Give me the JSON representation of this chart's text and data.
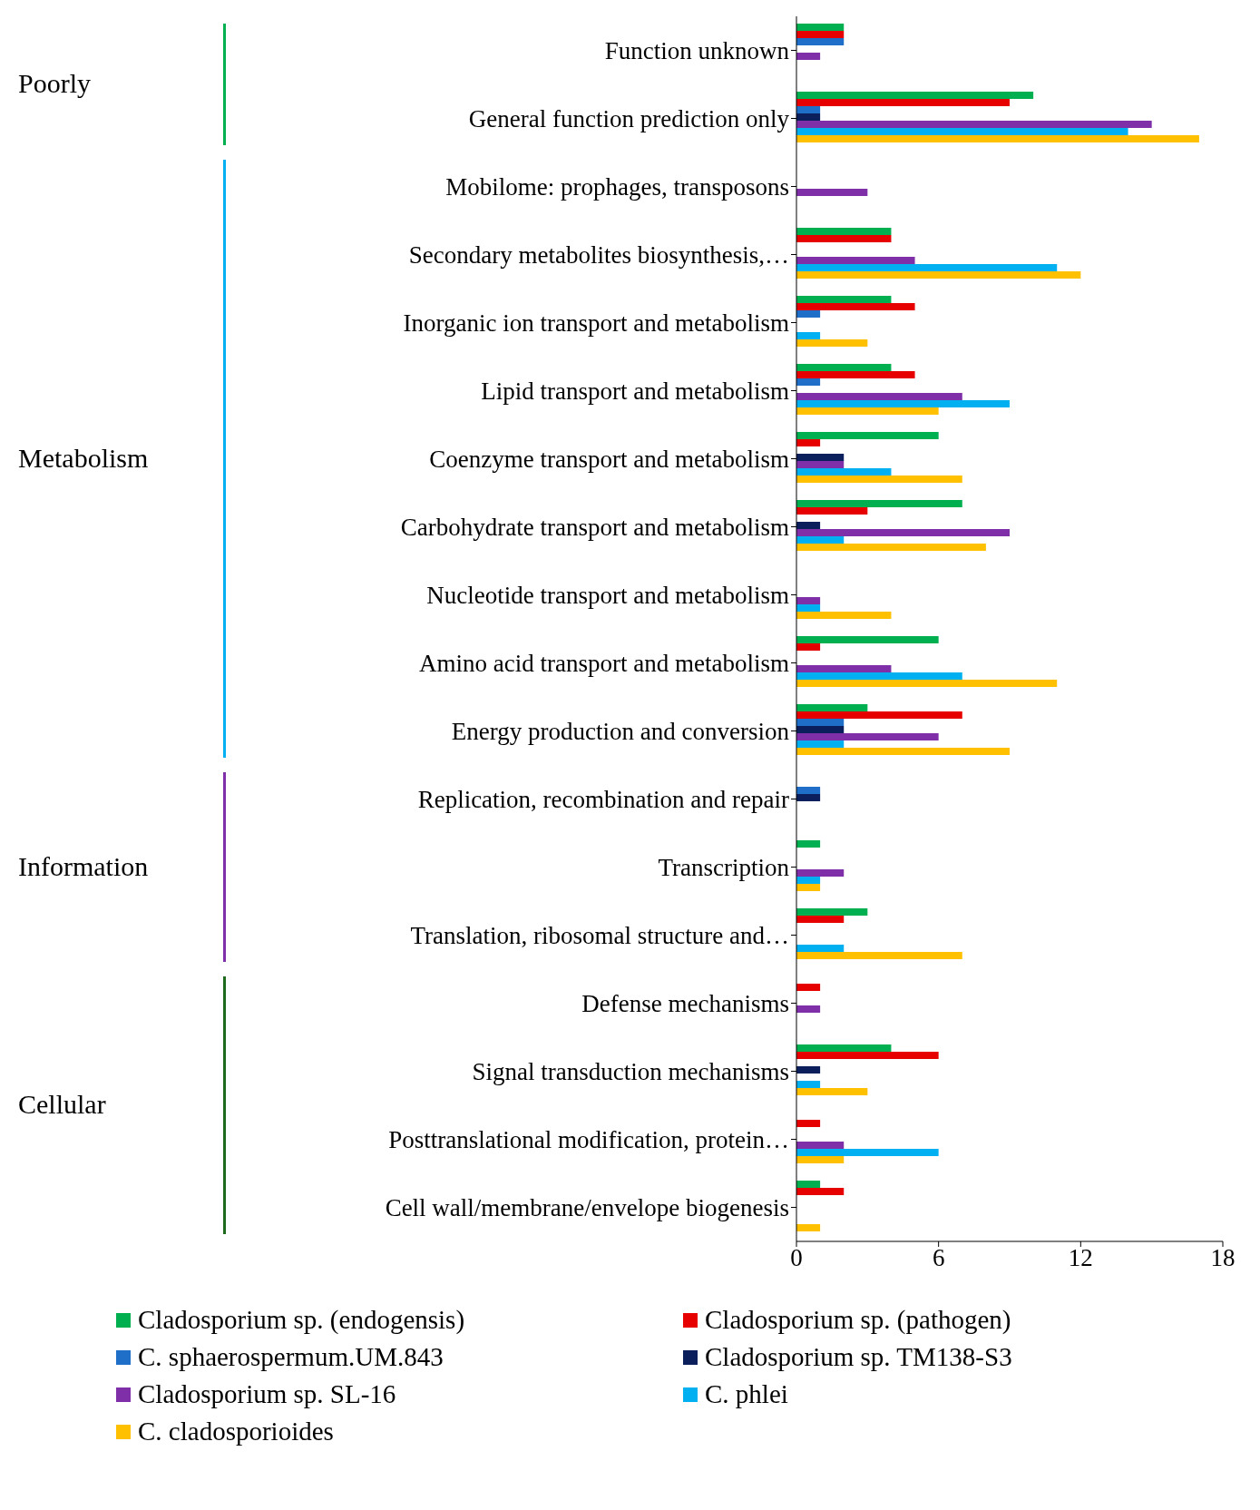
{
  "chart_data": {
    "type": "bar",
    "orientation": "horizontal",
    "categories": [
      "Function unknown",
      "General function prediction only",
      "Mobilome: prophages, transposons",
      "Secondary metabolites biosynthesis,…",
      "Inorganic ion transport and metabolism",
      "Lipid transport and metabolism",
      "Coenzyme transport and metabolism",
      "Carbohydrate transport and metabolism",
      "Nucleotide transport and metabolism",
      "Amino acid transport and metabolism",
      "Energy production and conversion",
      "Replication, recombination and repair",
      "Transcription",
      "Translation, ribosomal structure and…",
      "Defense mechanisms",
      "Signal transduction mechanisms",
      "Posttranslational modification, protein…",
      "Cell wall/membrane/envelope biogenesis"
    ],
    "series": [
      {
        "name": "Cladosporium sp. (endogensis)",
        "color": "#00b050",
        "values": [
          2,
          10,
          0,
          4,
          4,
          4,
          6,
          7,
          0,
          6,
          3,
          0,
          1,
          3,
          0,
          4,
          0,
          1
        ]
      },
      {
        "name": "Cladosporium sp. (pathogen)",
        "color": "#e60000",
        "values": [
          2,
          9,
          0,
          4,
          5,
          5,
          1,
          3,
          0,
          1,
          7,
          0,
          0,
          2,
          1,
          6,
          1,
          2
        ]
      },
      {
        "name": "C. sphaerospermum.UM.843",
        "color": "#1f6fc8",
        "values": [
          2,
          1,
          0,
          0,
          1,
          1,
          0,
          0,
          0,
          0,
          2,
          1,
          0,
          0,
          0,
          0,
          0,
          0
        ]
      },
      {
        "name": "Cladosporium sp. TM138-S3",
        "color": "#0a1f5c",
        "values": [
          0,
          1,
          0,
          0,
          0,
          0,
          2,
          1,
          0,
          0,
          2,
          1,
          0,
          0,
          0,
          1,
          0,
          0
        ]
      },
      {
        "name": "Cladosporium sp. SL-16",
        "color": "#7f2fa8",
        "values": [
          1,
          15,
          3,
          5,
          0,
          7,
          2,
          9,
          1,
          4,
          6,
          0,
          2,
          0,
          1,
          0,
          2,
          0
        ]
      },
      {
        "name": "C. phlei",
        "color": "#00b0f0",
        "values": [
          0,
          14,
          0,
          11,
          1,
          9,
          4,
          2,
          1,
          7,
          2,
          0,
          1,
          2,
          0,
          1,
          6,
          0
        ]
      },
      {
        "name": "C. cladosporioides",
        "color": "#ffc000",
        "values": [
          0,
          17,
          0,
          12,
          3,
          6,
          7,
          8,
          4,
          11,
          9,
          0,
          1,
          7,
          0,
          3,
          2,
          1
        ]
      }
    ],
    "xlim": [
      0,
      18
    ],
    "xticks": [
      0,
      6,
      12,
      18
    ],
    "legend": "bottom",
    "annotations": [
      "Poorly",
      "Metabolism",
      "Information",
      "Cellular"
    ]
  }
}
